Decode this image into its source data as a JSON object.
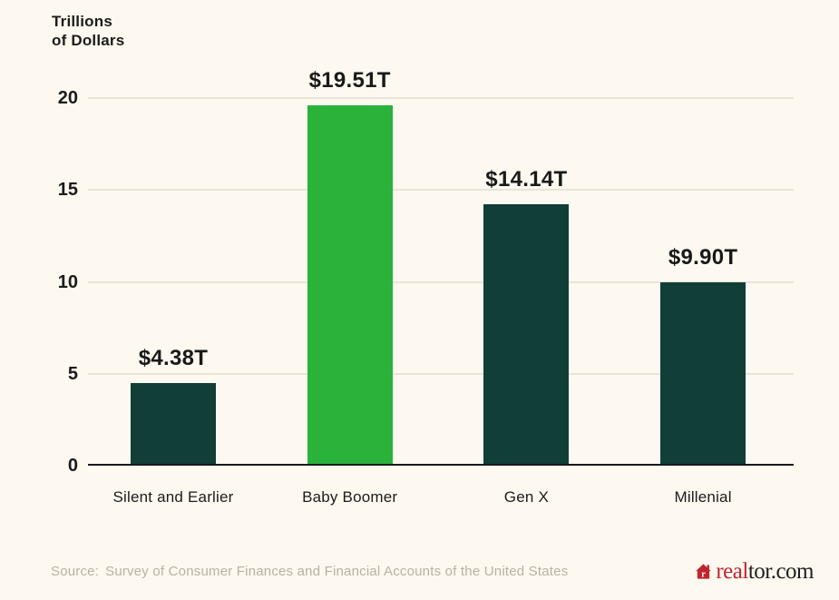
{
  "chart_data": {
    "type": "bar",
    "title": "Trillions\nof Dollars",
    "categories": [
      "Silent and Earlier",
      "Baby Boomer",
      "Gen X",
      "Millenial"
    ],
    "values": [
      4.38,
      19.51,
      14.14,
      9.9
    ],
    "value_labels": [
      "$4.38T",
      "$19.51T",
      "$14.14T",
      "$9.90T"
    ],
    "bar_colors": [
      "#113E37",
      "#2AB23A",
      "#113E37",
      "#113E37"
    ],
    "ylabel": "Trillions of Dollars",
    "xlabel": "",
    "ylim": [
      0,
      20
    ],
    "yticks": [
      0,
      5,
      10,
      15,
      20
    ],
    "grid": "horizontal",
    "legend": "none"
  },
  "colors": {
    "background": "#FDF9F0",
    "gridline": "#E8E4DA",
    "baseline": "#1A1A19",
    "bar_default": "#113E37",
    "bar_highlight": "#2AB23A",
    "text_dark": "#1B1B1A",
    "source_text": "#B7B1A6",
    "brand_red": "#C0242E"
  },
  "footer": {
    "source_label": "Source:",
    "source_text": "Survey of Consumer Finances and Financial Accounts of the United States",
    "brand": {
      "icon": "realtor-house-icon",
      "icon_letter": "r",
      "text_red": "real",
      "text_dark": "tor.com"
    }
  }
}
